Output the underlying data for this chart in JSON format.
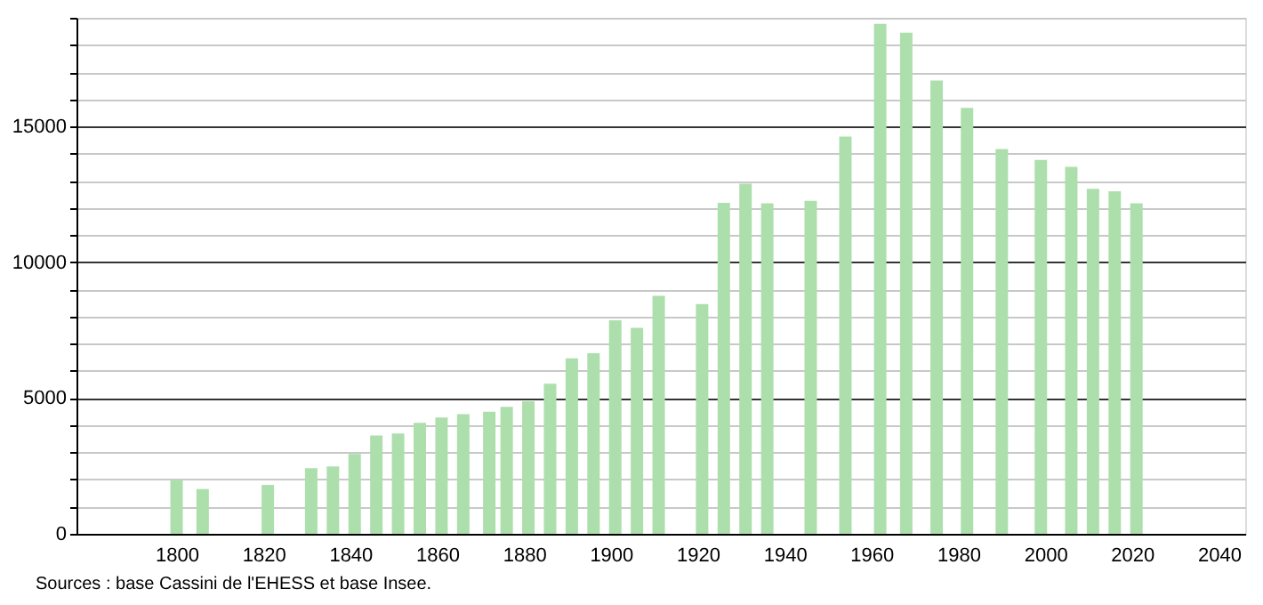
{
  "chart_data": {
    "type": "bar",
    "x": [
      1800,
      1806,
      1821,
      1831,
      1836,
      1841,
      1846,
      1851,
      1856,
      1861,
      1866,
      1872,
      1876,
      1881,
      1886,
      1891,
      1896,
      1901,
      1906,
      1911,
      1921,
      1926,
      1931,
      1936,
      1946,
      1954,
      1962,
      1968,
      1975,
      1982,
      1990,
      1999,
      2006,
      2011,
      2016,
      2021
    ],
    "values": [
      1980,
      1650,
      1800,
      2420,
      2480,
      2940,
      3620,
      3690,
      4090,
      4280,
      4410,
      4500,
      4680,
      4880,
      5530,
      6460,
      6650,
      7860,
      7580,
      8760,
      8460,
      12190,
      12890,
      12170,
      12260,
      14630,
      18780,
      18450,
      16690,
      15680,
      14170,
      13770,
      13510,
      12700,
      12610,
      12170
    ],
    "color": "#addfad",
    "xlim": [
      1779,
      2044
    ],
    "xticks": [
      1800,
      1820,
      1840,
      1860,
      1880,
      1900,
      1920,
      1940,
      1960,
      1980,
      2000,
      2020,
      2040
    ],
    "ylim": [
      0,
      19000
    ],
    "yticks": [
      0,
      {
        "value": 1000,
        "label": null
      },
      {
        "value": 2000,
        "label": null
      },
      {
        "value": 3000,
        "label": null
      },
      {
        "value": 4000,
        "label": null
      },
      5000,
      {
        "value": 6000,
        "label": null
      },
      {
        "value": 7000,
        "label": null
      },
      {
        "value": 8000,
        "label": null
      },
      {
        "value": 9000,
        "label": null
      },
      10000,
      {
        "value": 11000,
        "label": null
      },
      {
        "value": 12000,
        "label": null
      },
      {
        "value": 13000,
        "label": null
      },
      {
        "value": 14000,
        "label": null
      },
      15000,
      {
        "value": 16000,
        "label": null
      },
      {
        "value": 17000,
        "label": null
      },
      {
        "value": 18000,
        "label": null
      },
      {
        "value": 19000,
        "label": null
      }
    ],
    "grid": "y",
    "annotations": [
      "Sources : base Cassini de l'EHESS et base Insee."
    ]
  }
}
